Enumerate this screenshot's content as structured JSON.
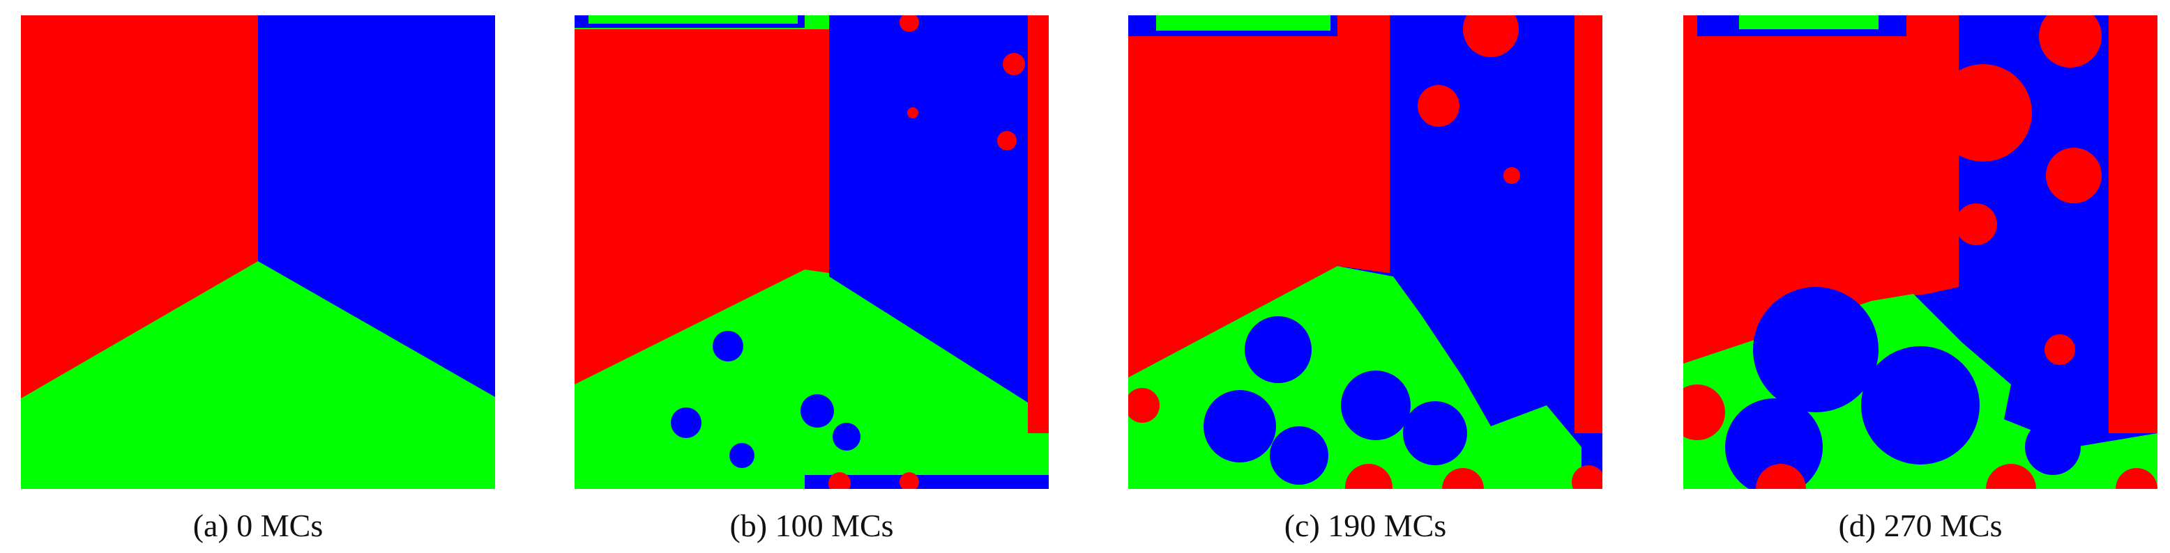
{
  "figure": {
    "panels": [
      {
        "caption": "(a) 0 MCs"
      },
      {
        "caption": "(b) 100 MCs"
      },
      {
        "caption": "(c) 190 MCs"
      },
      {
        "caption": "(d) 270 MCs"
      }
    ]
  }
}
